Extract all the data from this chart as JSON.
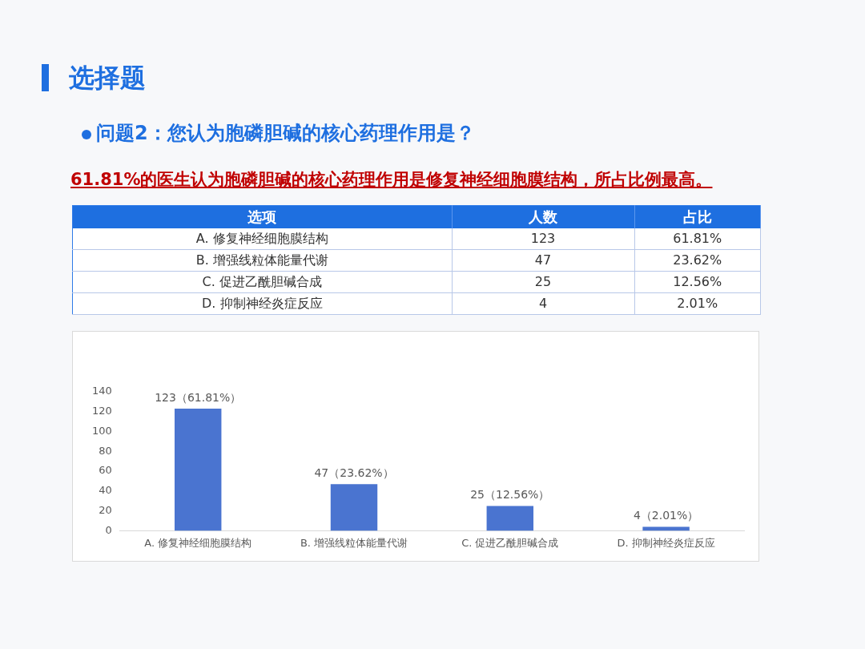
{
  "chart_data": {
    "type": "bar",
    "title": "选择题",
    "subtitle": "问题2：您认为胞磷胆碱的核心药理作用是？",
    "annotations": [
      "61.81%的医生认为胞磷胆碱的核心药理作用是修复神经细胞膜结构，所占比例最高。",
      "选项",
      "人数",
      "占比",
      "123",
      "47",
      "25",
      "4",
      "61.81%",
      "23.62%",
      "12.56%",
      "2.01%"
    ],
    "categories": [
      "A. 修复神经细胞膜结构",
      "B. 增强线粒体能量代谢",
      "C. 促进乙酰胆碱合成",
      "D. 抑制神经炎症反应"
    ],
    "values": [
      123,
      47,
      25,
      4
    ],
    "color": "#4a74d0",
    "value_labels": [
      "123（61.81%）",
      "47（23.62%）",
      "25（12.56%）",
      "4（2.01%）"
    ],
    "data_labels": true,
    "ylim": [
      0,
      140
    ],
    "yticks": [
      0,
      20,
      40,
      60,
      80,
      100,
      120,
      140
    ],
    "grid": false,
    "legend": false
  }
}
